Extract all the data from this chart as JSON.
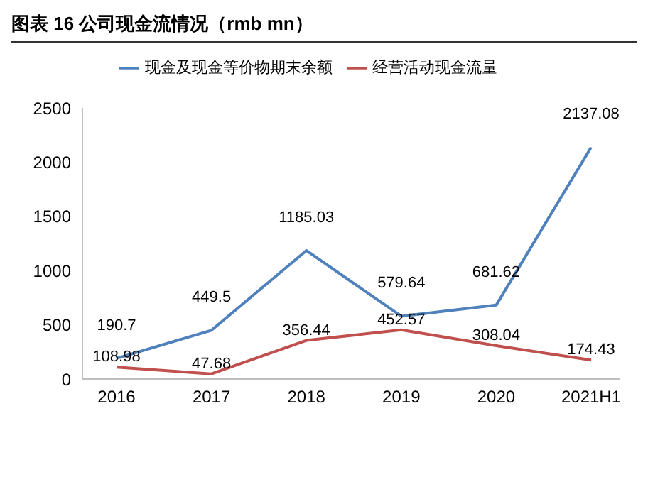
{
  "chart_data": {
    "type": "line",
    "title": "图表 16 公司现金流情况（rmb mn）",
    "categories": [
      "2016",
      "2017",
      "2018",
      "2019",
      "2020",
      "2021H1"
    ],
    "series": [
      {
        "name": "现金及现金等价物期末余额",
        "color": "#4f81bd",
        "values": [
          190.7,
          449.5,
          1185.03,
          579.64,
          681.62,
          2137.08
        ]
      },
      {
        "name": "经营活动现金流量",
        "color": "#c0504d",
        "values": [
          108.98,
          47.68,
          356.44,
          452.57,
          308.04,
          174.43
        ]
      }
    ],
    "ylim": [
      0,
      2500
    ],
    "yticks": [
      0,
      500,
      1000,
      1500,
      2000,
      2500
    ],
    "grid": false,
    "legend": "top",
    "marker": "none",
    "data_labels": true
  }
}
